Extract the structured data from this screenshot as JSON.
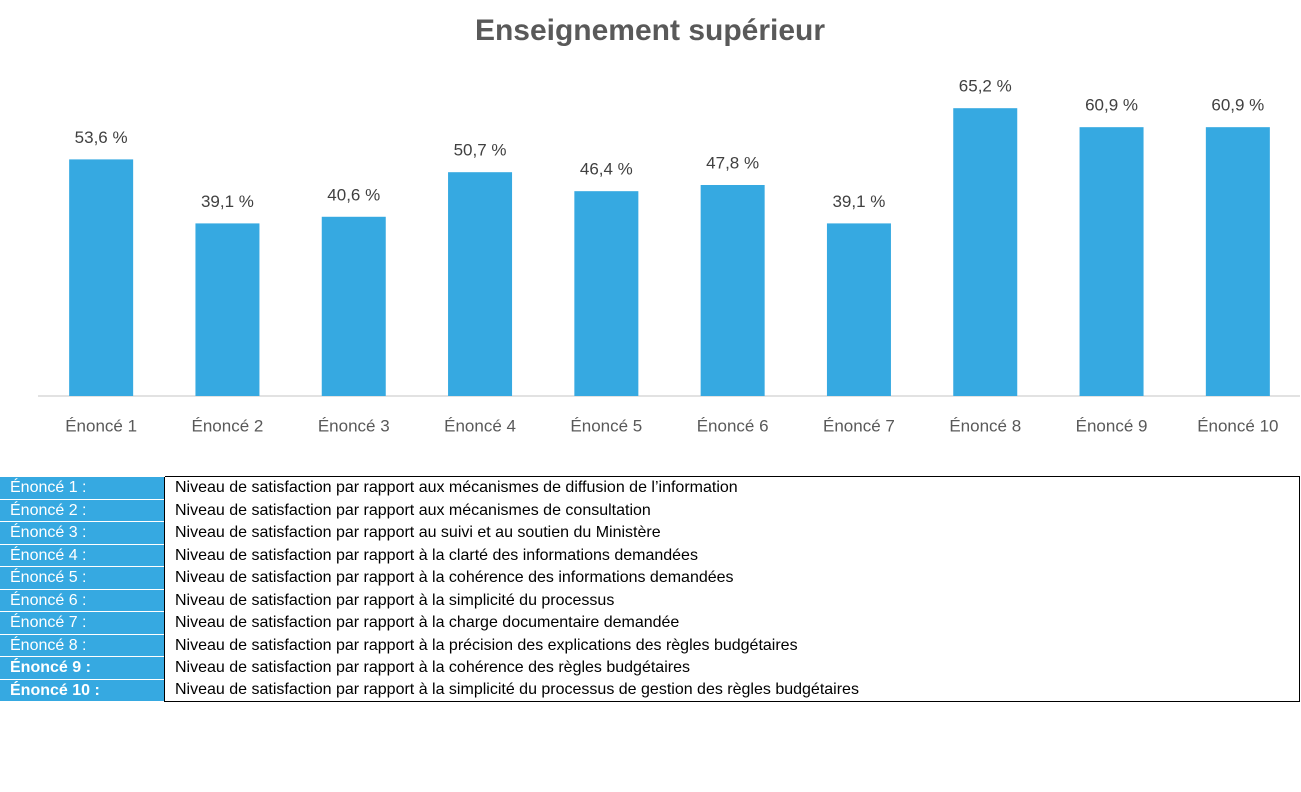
{
  "chart_data": {
    "type": "bar",
    "title": "Enseignement supérieur",
    "categories": [
      "Énoncé 1",
      "Énoncé 2",
      "Énoncé 3",
      "Énoncé 4",
      "Énoncé 5",
      "Énoncé 6",
      "Énoncé 7",
      "Énoncé 8",
      "Énoncé 9",
      "Énoncé 10"
    ],
    "values": [
      53.6,
      39.1,
      40.6,
      50.7,
      46.4,
      47.8,
      39.1,
      65.2,
      60.9,
      60.9
    ],
    "value_labels": [
      "53,6 %",
      "39,1 %",
      "40,6 %",
      "50,7 %",
      "46,4 %",
      "47,8 %",
      "39,1 %",
      "65,2 %",
      "60,9 %",
      "60,9 %"
    ],
    "color": "#36a9e1",
    "ylim": [
      0,
      70
    ]
  },
  "table": {
    "rows": [
      [
        "Énoncé 1 :",
        "Niveau de satisfaction par rapport aux mécanismes de diffusion de l’information"
      ],
      [
        "Énoncé 2 :",
        "Niveau de satisfaction par rapport aux mécanismes de consultation"
      ],
      [
        "Énoncé 3 :",
        "Niveau de satisfaction par rapport au suivi et au soutien du Ministère"
      ],
      [
        "Énoncé 4 :",
        "Niveau de satisfaction par rapport à la clarté des informations demandées"
      ],
      [
        "Énoncé 5 :",
        "Niveau de satisfaction par rapport à la cohérence des informations demandées"
      ],
      [
        "Énoncé 6 :",
        "Niveau de satisfaction par rapport à la simplicité du processus"
      ],
      [
        "Énoncé 7 :",
        "Niveau de satisfaction par rapport à la charge documentaire demandée"
      ],
      [
        "Énoncé 8 :",
        "Niveau de satisfaction par rapport à la précision des explications des règles budgétaires"
      ],
      [
        "Énoncé 9 :",
        "Niveau de satisfaction par rapport à la cohérence des règles budgétaires"
      ],
      [
        "Énoncé 10 :",
        "Niveau de satisfaction par rapport à la simplicité du processus de gestion des règles budgétaires"
      ]
    ]
  }
}
